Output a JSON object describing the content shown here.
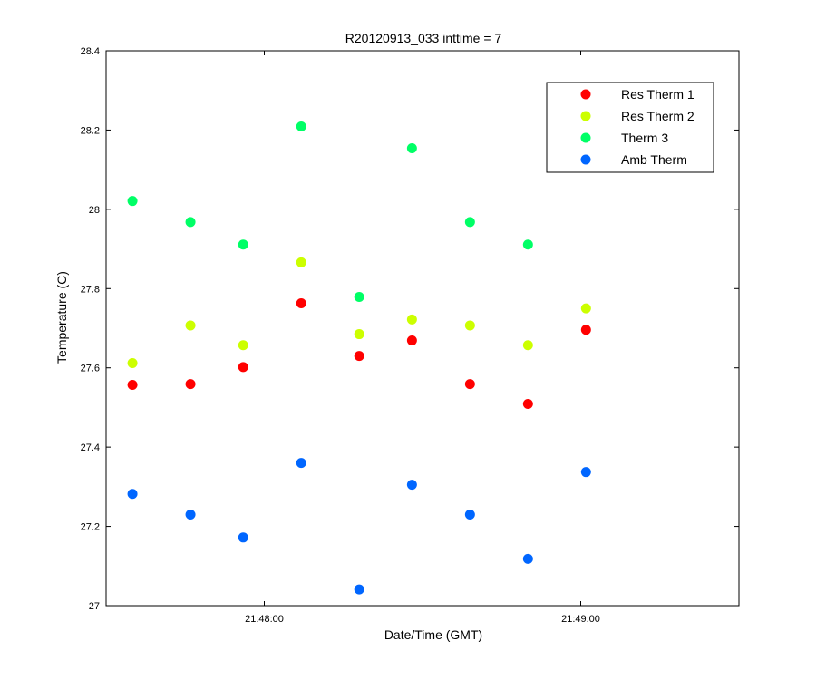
{
  "chart_data": {
    "type": "scatter",
    "title": "R20120913_033 inttime = 7",
    "xlabel": "Date/Time (GMT)",
    "ylabel": "Temperature (C)",
    "xlim": [
      "21:47:30",
      "21:49:30"
    ],
    "ylim": [
      27,
      28.4
    ],
    "x_ticks": [
      "21:48:00",
      "21:49:00"
    ],
    "y_ticks": [
      "27",
      "27.2",
      "27.4",
      "27.6",
      "27.8",
      "28",
      "28.2",
      "28.4"
    ],
    "grid": false,
    "legend_position": "top-right",
    "x": [
      "21:47:35",
      "21:47:46",
      "21:47:56",
      "21:48:07",
      "21:48:18",
      "21:48:28",
      "21:48:39",
      "21:48:50",
      "21:49:01"
    ],
    "series": [
      {
        "name": "Res Therm 1",
        "color": "#ff0000",
        "x": [
          "21:47:35",
          "21:47:46",
          "21:47:56",
          "21:48:07",
          "21:48:18",
          "21:48:28",
          "21:48:39",
          "21:48:50",
          "21:49:01"
        ],
        "values": [
          27.557,
          27.559,
          27.602,
          27.763,
          27.63,
          27.669,
          27.559,
          27.509,
          27.696
        ]
      },
      {
        "name": "Res Therm 2",
        "color": "#ccff00",
        "x": [
          "21:47:35",
          "21:47:46",
          "21:47:56",
          "21:48:07",
          "21:48:18",
          "21:48:28",
          "21:48:39",
          "21:48:50",
          "21:49:01"
        ],
        "values": [
          27.612,
          27.707,
          27.657,
          27.866,
          27.685,
          27.722,
          27.707,
          27.657,
          27.75
        ]
      },
      {
        "name": "Therm 3",
        "color": "#00ff66",
        "x": [
          "21:47:35",
          "21:47:46",
          "21:47:56",
          "21:48:07",
          "21:48:18",
          "21:48:28",
          "21:48:39",
          "21:48:50"
        ],
        "values": [
          28.021,
          27.968,
          27.911,
          28.209,
          27.779,
          28.154,
          27.968,
          27.911
        ]
      },
      {
        "name": "Amb Therm",
        "color": "#0066ff",
        "x": [
          "21:47:35",
          "21:47:46",
          "21:47:56",
          "21:48:07",
          "21:48:18",
          "21:48:28",
          "21:48:39",
          "21:48:50",
          "21:49:01"
        ],
        "values": [
          27.282,
          27.23,
          27.172,
          27.36,
          27.041,
          27.305,
          27.23,
          27.118,
          27.337
        ]
      }
    ]
  }
}
